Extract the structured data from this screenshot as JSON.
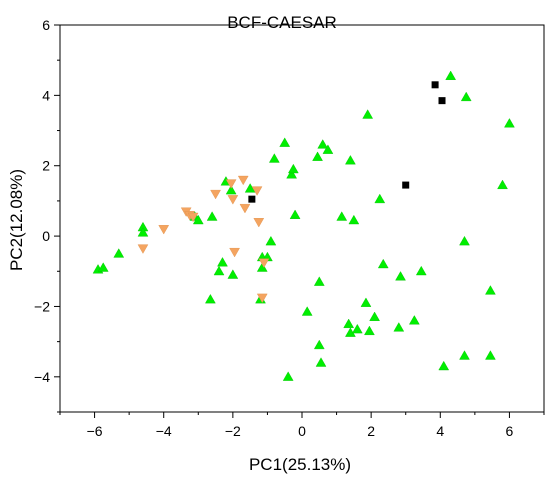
{
  "chart_data": {
    "type": "scatter",
    "title": "BCF-CAESAR",
    "xlabel": "PC1(25.13%)",
    "ylabel": "PC2(12.08%)",
    "xlim": [
      -7,
      7
    ],
    "ylim": [
      -5,
      6
    ],
    "xticks": [
      -6,
      -4,
      -2,
      0,
      2,
      4,
      6
    ],
    "yticks": [
      -4,
      -2,
      0,
      2,
      4,
      6
    ],
    "grid": false,
    "legend": "none",
    "series": [
      {
        "marker": "triangle-up",
        "color": "#00ee00",
        "points": [
          [
            -5.9,
            -0.95
          ],
          [
            -5.75,
            -0.9
          ],
          [
            -5.3,
            -0.5
          ],
          [
            -4.6,
            0.25
          ],
          [
            -4.6,
            0.1
          ],
          [
            -3.1,
            0.55
          ],
          [
            -3.0,
            0.45
          ],
          [
            -2.6,
            0.55
          ],
          [
            -2.65,
            -1.8
          ],
          [
            -2.4,
            -1.0
          ],
          [
            -2.3,
            -0.75
          ],
          [
            -2.2,
            1.55
          ],
          [
            -2.05,
            1.3
          ],
          [
            -2.0,
            -1.1
          ],
          [
            -1.5,
            1.35
          ],
          [
            -1.2,
            -1.8
          ],
          [
            -1.15,
            -0.6
          ],
          [
            -1.15,
            -0.9
          ],
          [
            -1.0,
            -0.6
          ],
          [
            -0.9,
            -0.15
          ],
          [
            -0.8,
            2.2
          ],
          [
            -0.5,
            2.65
          ],
          [
            -0.4,
            -4.0
          ],
          [
            -0.3,
            1.75
          ],
          [
            -0.25,
            1.9
          ],
          [
            -0.2,
            0.6
          ],
          [
            0.15,
            -2.15
          ],
          [
            0.45,
            2.25
          ],
          [
            0.5,
            -1.3
          ],
          [
            0.5,
            -3.1
          ],
          [
            0.55,
            -3.6
          ],
          [
            0.6,
            2.6
          ],
          [
            0.75,
            2.45
          ],
          [
            1.15,
            0.55
          ],
          [
            1.35,
            -2.5
          ],
          [
            1.4,
            -2.75
          ],
          [
            1.4,
            2.15
          ],
          [
            1.5,
            0.45
          ],
          [
            1.6,
            -2.65
          ],
          [
            1.85,
            -1.9
          ],
          [
            1.9,
            3.45
          ],
          [
            1.95,
            -2.7
          ],
          [
            2.1,
            -2.3
          ],
          [
            2.25,
            1.05
          ],
          [
            2.35,
            -0.8
          ],
          [
            2.8,
            -2.6
          ],
          [
            2.85,
            -1.15
          ],
          [
            3.25,
            -2.4
          ],
          [
            3.45,
            -1.0
          ],
          [
            4.1,
            -3.7
          ],
          [
            4.3,
            4.55
          ],
          [
            4.7,
            -3.4
          ],
          [
            4.7,
            -0.15
          ],
          [
            4.75,
            3.95
          ],
          [
            5.45,
            -3.4
          ],
          [
            5.45,
            -1.55
          ],
          [
            5.8,
            1.45
          ],
          [
            6.0,
            3.2
          ]
        ]
      },
      {
        "marker": "triangle-down",
        "color": "#f4a460",
        "points": [
          [
            -4.6,
            -0.35
          ],
          [
            -4.0,
            0.2
          ],
          [
            -3.35,
            0.7
          ],
          [
            -3.25,
            0.6
          ],
          [
            -3.15,
            0.55
          ],
          [
            -2.5,
            1.2
          ],
          [
            -2.05,
            1.5
          ],
          [
            -2.0,
            1.05
          ],
          [
            -1.95,
            -0.45
          ],
          [
            -1.7,
            1.6
          ],
          [
            -1.65,
            0.8
          ],
          [
            -1.3,
            1.3
          ],
          [
            -1.25,
            0.4
          ],
          [
            -1.15,
            -1.75
          ],
          [
            -1.1,
            -0.75
          ]
        ]
      },
      {
        "marker": "square",
        "color": "#000000",
        "points": [
          [
            -1.45,
            1.05
          ],
          [
            3.0,
            1.45
          ],
          [
            3.85,
            4.3
          ],
          [
            4.05,
            3.85
          ]
        ]
      }
    ]
  }
}
